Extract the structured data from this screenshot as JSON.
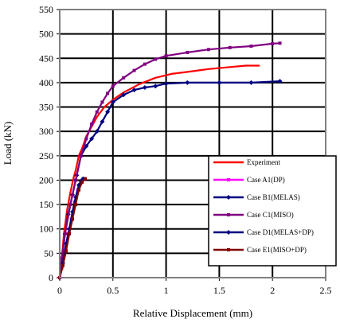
{
  "chart_data": {
    "type": "line",
    "xlabel": "Relative Displacement (mm)",
    "ylabel": "Load (kN)",
    "xlim": [
      0,
      2.5
    ],
    "ylim": [
      0,
      550
    ],
    "x_ticks": [
      "0",
      "0.5",
      "1",
      "1.5",
      "2",
      "2.5"
    ],
    "y_ticks": [
      "0",
      "50",
      "100",
      "150",
      "200",
      "250",
      "300",
      "350",
      "400",
      "450",
      "500",
      "550"
    ],
    "grid": true,
    "legend_position": "bottom-right, inside plot",
    "series": [
      {
        "name": "Experiment",
        "color": "#ff0000",
        "marker": "none",
        "points": [
          [
            0,
            0
          ],
          [
            0.02,
            40
          ],
          [
            0.04,
            90
          ],
          [
            0.07,
            140
          ],
          [
            0.1,
            175
          ],
          [
            0.13,
            205
          ],
          [
            0.15,
            220
          ],
          [
            0.18,
            250
          ],
          [
            0.21,
            265
          ],
          [
            0.25,
            290
          ],
          [
            0.3,
            310
          ],
          [
            0.35,
            330
          ],
          [
            0.42,
            350
          ],
          [
            0.5,
            365
          ],
          [
            0.6,
            380
          ],
          [
            0.75,
            397
          ],
          [
            0.9,
            410
          ],
          [
            1.05,
            418
          ],
          [
            1.2,
            422
          ],
          [
            1.4,
            428
          ],
          [
            1.6,
            432
          ],
          [
            1.75,
            435
          ],
          [
            1.88,
            435
          ]
        ]
      },
      {
        "name": "Case A1(DP)",
        "color": "#ff00ff",
        "marker": "square",
        "points": [
          [
            0,
            0
          ],
          [
            0.02,
            20
          ],
          [
            0.05,
            55
          ],
          [
            0.08,
            90
          ],
          [
            0.11,
            120
          ],
          [
            0.14,
            155
          ],
          [
            0.17,
            180
          ],
          [
            0.2,
            195
          ],
          [
            0.22,
            202
          ]
        ]
      },
      {
        "name": "Case B1(MELAS)",
        "color": "#000080",
        "marker": "diamond",
        "points": [
          [
            0,
            0
          ],
          [
            0.02,
            40
          ],
          [
            0.05,
            90
          ],
          [
            0.08,
            130
          ],
          [
            0.12,
            170
          ],
          [
            0.16,
            210
          ],
          [
            0.2,
            250
          ],
          [
            0.25,
            270
          ],
          [
            0.3,
            285
          ],
          [
            0.35,
            300
          ],
          [
            0.4,
            320
          ],
          [
            0.45,
            340
          ],
          [
            0.5,
            360
          ],
          [
            0.6,
            375
          ],
          [
            0.7,
            385
          ],
          [
            0.8,
            390
          ],
          [
            0.9,
            393
          ],
          [
            1.0,
            398
          ],
          [
            1.2,
            400
          ],
          [
            1.5,
            400
          ],
          [
            1.8,
            400
          ],
          [
            2.07,
            403
          ]
        ]
      },
      {
        "name": "Case C1(MISO)",
        "color": "#800080",
        "marker": "square",
        "points": [
          [
            0,
            0
          ],
          [
            0.02,
            40
          ],
          [
            0.05,
            90
          ],
          [
            0.1,
            150
          ],
          [
            0.15,
            200
          ],
          [
            0.2,
            250
          ],
          [
            0.25,
            285
          ],
          [
            0.3,
            315
          ],
          [
            0.35,
            340
          ],
          [
            0.4,
            360
          ],
          [
            0.45,
            378
          ],
          [
            0.5,
            393
          ],
          [
            0.6,
            410
          ],
          [
            0.7,
            425
          ],
          [
            0.8,
            438
          ],
          [
            0.9,
            448
          ],
          [
            1.0,
            455
          ],
          [
            1.2,
            462
          ],
          [
            1.4,
            468
          ],
          [
            1.6,
            472
          ],
          [
            1.8,
            475
          ],
          [
            2.0,
            480
          ],
          [
            2.07,
            481
          ]
        ]
      },
      {
        "name": "Case D1(MELAS+DP)",
        "color": "#000080",
        "marker": "diamond",
        "points": [
          [
            0,
            0
          ],
          [
            0.03,
            30
          ],
          [
            0.06,
            70
          ],
          [
            0.09,
            100
          ],
          [
            0.12,
            135
          ],
          [
            0.15,
            165
          ],
          [
            0.18,
            190
          ],
          [
            0.2,
            198
          ],
          [
            0.22,
            203
          ]
        ]
      },
      {
        "name": "Case E1(MISO+DP)",
        "color": "#800000",
        "marker": "square",
        "points": [
          [
            0,
            0
          ],
          [
            0.03,
            25
          ],
          [
            0.06,
            55
          ],
          [
            0.09,
            90
          ],
          [
            0.12,
            120
          ],
          [
            0.15,
            150
          ],
          [
            0.18,
            180
          ],
          [
            0.21,
            196
          ],
          [
            0.24,
            203
          ]
        ]
      }
    ]
  }
}
